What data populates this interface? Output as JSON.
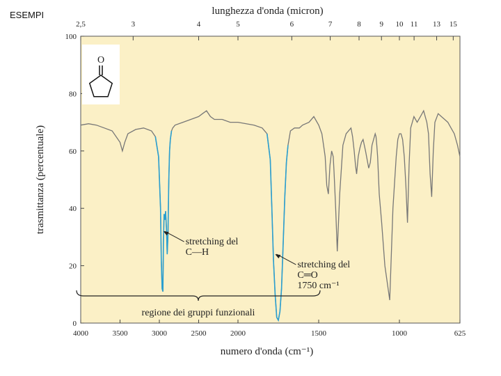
{
  "page": {
    "slide_label": "ESEMPI"
  },
  "chart_data": {
    "type": "line",
    "xlabel": "numero d'onda (cm⁻¹)",
    "ylabel": "trasmittanza (percentuale)",
    "x2label": "lunghezza d'onda (micron)",
    "xlim": [
      4000,
      625
    ],
    "ylim": [
      0,
      100
    ],
    "x_ticks": [
      4000,
      3500,
      3000,
      2500,
      2000,
      1500,
      1000,
      625
    ],
    "y_ticks": [
      0,
      20,
      40,
      60,
      80,
      100
    ],
    "top_ticks": [
      {
        "label": "2,5",
        "micron": 2.5
      },
      {
        "label": "3",
        "micron": 3
      },
      {
        "label": "4",
        "micron": 4
      },
      {
        "label": "5",
        "micron": 5
      },
      {
        "label": "6",
        "micron": 6
      },
      {
        "label": "7",
        "micron": 7
      },
      {
        "label": "8",
        "micron": 8
      },
      {
        "label": "9",
        "micron": 9
      },
      {
        "label": "10",
        "micron": 10
      },
      {
        "label": "11",
        "micron": 11
      },
      {
        "label": "13",
        "micron": 13
      },
      {
        "label": "15",
        "micron": 15
      }
    ],
    "grid": false,
    "colors": {
      "plot_bg": "#fbf0c6",
      "baseline": "#777777",
      "highlight": "#2a9fd0"
    },
    "series": [
      {
        "x": [
          4000,
          3900,
          3800,
          3700,
          3600,
          3500,
          3470,
          3440,
          3400,
          3300,
          3200,
          3100,
          3050,
          3010,
          2985,
          2975,
          2965,
          2955,
          2948,
          2940,
          2930,
          2920,
          2910,
          2900,
          2890,
          2880,
          2870,
          2860,
          2845,
          2830,
          2800,
          2700,
          2600,
          2500,
          2450,
          2400,
          2350,
          2300,
          2200,
          2100,
          2000,
          1900,
          1850,
          1820,
          1800,
          1790,
          1780,
          1770,
          1760,
          1750,
          1740,
          1730,
          1720,
          1710,
          1700,
          1690,
          1675,
          1650,
          1620,
          1600,
          1560,
          1530,
          1500,
          1480,
          1470,
          1460,
          1450,
          1440,
          1430,
          1420,
          1410,
          1405,
          1395,
          1385,
          1370,
          1350,
          1330,
          1300,
          1290,
          1280,
          1272,
          1265,
          1255,
          1245,
          1235,
          1225,
          1210,
          1190,
          1180,
          1170,
          1160,
          1150,
          1145,
          1140,
          1135,
          1125,
          1110,
          1090,
          1060,
          1040,
          1020,
          1010,
          1000,
          990,
          980,
          970,
          960,
          950,
          940,
          930,
          910,
          890,
          870,
          850,
          840,
          830,
          820,
          810,
          800,
          790,
          780,
          760,
          740,
          720,
          700,
          680,
          660,
          640,
          625
        ],
        "y": [
          69,
          69.5,
          69,
          68,
          67,
          63,
          60,
          63,
          66,
          67.5,
          68,
          67,
          65,
          58,
          40,
          22,
          12,
          11,
          28,
          38,
          36,
          39,
          33,
          24,
          31,
          50,
          60,
          64,
          67,
          68,
          69,
          70,
          71,
          72,
          73,
          74,
          72,
          71,
          71,
          70,
          70,
          69,
          68,
          66,
          57,
          40,
          22,
          10,
          2,
          1,
          4,
          12,
          28,
          44,
          56,
          62,
          67,
          68,
          68,
          69,
          70,
          72,
          69,
          66,
          62,
          58,
          48,
          45,
          55,
          60,
          58,
          53,
          40,
          25,
          45,
          62,
          66,
          68,
          65,
          60,
          55,
          52,
          58,
          61,
          63,
          64,
          60,
          54,
          56,
          62,
          64,
          66,
          65,
          62,
          58,
          45,
          35,
          20,
          8,
          40,
          58,
          64,
          66,
          66,
          64,
          58,
          48,
          35,
          55,
          68,
          72,
          70,
          72,
          74,
          72,
          70,
          66,
          52,
          44,
          60,
          70,
          73,
          72,
          71,
          70,
          68,
          66,
          62,
          58
        ],
        "highlight_ranges": [
          [
            3060,
            2840
          ],
          [
            1830,
            1690
          ]
        ]
      }
    ],
    "annotations": [
      {
        "lines": [
          "stretching del",
          "C—H"
        ],
        "x": 2950,
        "y": 32
      },
      {
        "lines": [
          "stretching del",
          "C═O",
          "1750 cm⁻¹"
        ],
        "x": 1770,
        "y": 24
      }
    ],
    "bracket": {
      "label": "regione dei gruppi funzionali",
      "x_from": 4000,
      "x_to": 1500
    },
    "inset": {
      "label": "O"
    }
  }
}
